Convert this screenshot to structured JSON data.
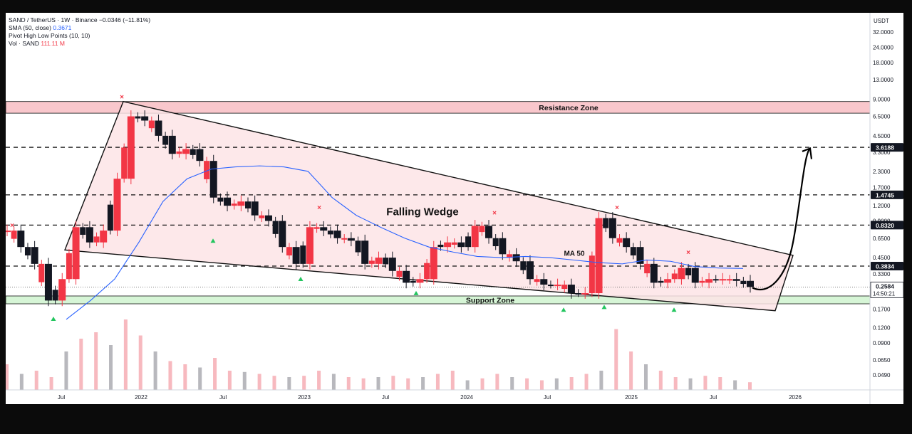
{
  "header": {
    "symbol": "SAND / TetherUS · 1W · Binance",
    "change": "−0.0346 (−11.81%)",
    "sma_label": "SMA (50, close)",
    "sma_value": "0.3671",
    "pivot_label": "Pivot High Low Points (10, 10)",
    "vol_label": "Vol · SAND",
    "vol_value": "111.11 M"
  },
  "colors": {
    "up": "#f23645",
    "down": "#131722",
    "sma": "#2962ff",
    "resistance_fill": "#f9c7cc",
    "support_fill": "#d6f5d6",
    "wedge_fill": "#fde4e6",
    "pivot_high": "#f23645",
    "pivot_low": "#22c55e",
    "badge": "#131722"
  },
  "chart_data": {
    "type": "candlestick",
    "scale": "log",
    "currency": "USDT",
    "y_ticks": [
      "32.0000",
      "24.0000",
      "18.0000",
      "13.0000",
      "9.0000",
      "6.5000",
      "4.5000",
      "3.3000",
      "2.3000",
      "1.7000",
      "1.2000",
      "0.9000",
      "0.6500",
      "0.4500",
      "0.3300",
      "0.2400",
      "0.1700",
      "0.1200",
      "0.0900",
      "0.0650",
      "0.0490"
    ],
    "x_ticks": [
      "Jul",
      "2022",
      "Jul",
      "2023",
      "Jul",
      "2024",
      "Jul",
      "2025",
      "Jul",
      "2026"
    ],
    "price_levels": [
      {
        "label": "3.6188",
        "value": 3.6188
      },
      {
        "label": "1.4745",
        "value": 1.4745
      },
      {
        "label": "0.8320",
        "value": 0.832
      },
      {
        "label": "0.3834",
        "value": 0.3834
      }
    ],
    "current_price": {
      "label": "0.2584",
      "value": 0.2584,
      "countdown": "14:50:21"
    },
    "zones": {
      "resistance": {
        "label": "Resistance Zone",
        "low": 6.9,
        "high": 8.6
      },
      "support": {
        "label": "Support Zone",
        "low": 0.188,
        "high": 0.218
      }
    },
    "annotations": {
      "pattern": "Falling Wedge",
      "ma": "MA 50"
    },
    "sma50_y": [
      0.14,
      0.2,
      0.3,
      0.6,
      1.3,
      2.0,
      2.4,
      2.5,
      2.55,
      2.5,
      2.3,
      1.4,
      1.0,
      0.8,
      0.65,
      0.55,
      0.5,
      0.46,
      0.45,
      0.46,
      0.45,
      0.43,
      0.41,
      0.4,
      0.43,
      0.42,
      0.38,
      0.37,
      0.367
    ],
    "price_path_y": [
      0.75,
      0.55,
      0.4,
      0.2,
      0.3,
      0.8,
      0.6,
      0.75,
      2.0,
      6.5,
      6.0,
      4.5,
      3.2,
      3.5,
      2.8,
      1.4,
      1.2,
      1.3,
      1.0,
      0.9,
      0.55,
      0.4,
      0.8,
      0.75,
      0.65,
      0.62,
      0.4,
      0.45,
      0.35,
      0.28,
      0.3,
      0.55,
      0.6,
      0.55,
      0.82,
      0.65,
      0.48,
      0.42,
      0.3,
      0.27,
      0.27,
      0.23,
      0.23,
      0.95,
      0.65,
      0.55,
      0.4,
      0.28,
      0.3,
      0.37,
      0.28,
      0.3,
      0.3,
      0.29,
      0.2584
    ],
    "volume_heights": [
      40,
      25,
      30,
      20,
      60,
      80,
      90,
      70,
      110,
      85,
      60,
      45,
      40,
      35,
      50,
      30,
      28,
      25,
      22,
      20,
      22,
      30,
      25,
      20,
      18,
      20,
      22,
      18,
      20,
      25,
      30,
      15,
      18,
      25,
      20,
      18,
      15,
      18,
      20,
      25,
      30,
      95,
      60,
      40,
      30,
      20,
      18,
      22,
      20,
      15,
      12
    ],
    "pivot_highs": [
      0.75,
      8.5,
      1.05,
      0.95,
      1.05,
      0.45
    ],
    "pivot_lows": [
      0.16,
      0.7,
      0.34,
      0.26,
      0.19,
      0.2,
      0.19
    ]
  }
}
